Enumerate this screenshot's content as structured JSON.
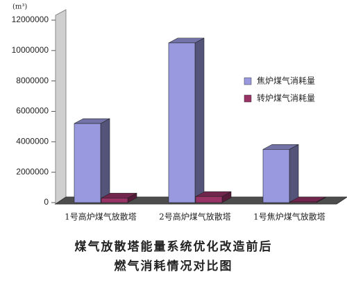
{
  "chart_data": {
    "type": "bar3d",
    "title": [
      "煤气放散塔能量系统优化改造前后",
      "燃气消耗情况对比图"
    ],
    "unit": "(m³)",
    "categories": [
      "1号高炉煤气放散塔",
      "2号高炉煤气放散塔",
      "1号焦炉煤气放散塔"
    ],
    "series": [
      {
        "name": "焦炉煤气消耗量",
        "color": "#9999e0",
        "values": [
          5200000,
          10500000,
          3500000
        ]
      },
      {
        "name": "转炉煤气消耗量",
        "color": "#993366",
        "values": [
          300000,
          400000,
          50000
        ]
      }
    ],
    "ylim": [
      0,
      12000000
    ],
    "yticks": [
      0,
      2000000,
      4000000,
      6000000,
      8000000,
      10000000,
      12000000
    ],
    "legend": "right"
  }
}
